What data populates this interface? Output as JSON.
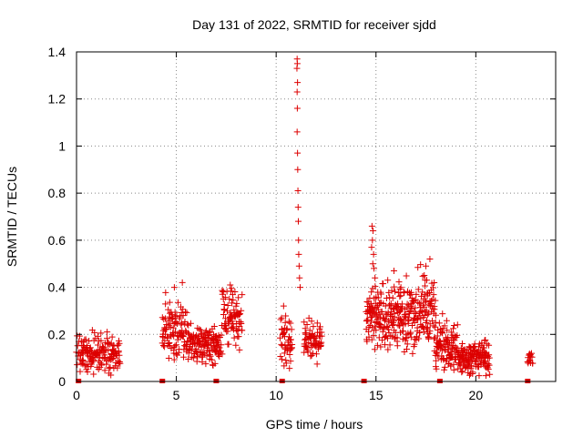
{
  "chart_data": {
    "type": "scatter",
    "title": "Day 131 of 2022, SRMTID for receiver sjdd",
    "xlabel": "GPS time / hours",
    "ylabel": "SRMTID / TECUs",
    "xlim": [
      0,
      24
    ],
    "ylim": [
      0,
      1.4
    ],
    "xticks": [
      {
        "value": 0,
        "label": "0"
      },
      {
        "value": 5,
        "label": "5"
      },
      {
        "value": 10,
        "label": "10"
      },
      {
        "value": 15,
        "label": "15"
      },
      {
        "value": 20,
        "label": "20"
      }
    ],
    "yticks": [
      {
        "value": 0,
        "label": "0"
      },
      {
        "value": 0.2,
        "label": "0.2"
      },
      {
        "value": 0.4,
        "label": "0.4"
      },
      {
        "value": 0.6,
        "label": "0.6"
      },
      {
        "value": 0.8,
        "label": "0.8"
      },
      {
        "value": 1.0,
        "label": "1"
      },
      {
        "value": 1.2,
        "label": "1.2"
      },
      {
        "value": 1.4,
        "label": "1.4"
      }
    ],
    "grid": true,
    "marker": "+",
    "color": "#dd0000",
    "segments": [
      {
        "x0": 0.0,
        "x1": 2.2,
        "base": 0.11,
        "spread": 0.06,
        "peak": 0.22,
        "step": 0.02
      },
      {
        "x0": 4.3,
        "x1": 5.6,
        "base": 0.21,
        "spread": 0.08,
        "peak": 0.42,
        "step": 0.018
      },
      {
        "x0": 5.6,
        "x1": 7.3,
        "base": 0.16,
        "spread": 0.06,
        "peak": 0.25,
        "step": 0.018
      },
      {
        "x0": 7.3,
        "x1": 8.3,
        "base": 0.27,
        "spread": 0.08,
        "peak": 0.41,
        "step": 0.018
      },
      {
        "x0": 10.2,
        "x1": 10.8,
        "base": 0.18,
        "spread": 0.08,
        "peak": 0.38,
        "step": 0.018
      },
      {
        "x0": 11.4,
        "x1": 12.3,
        "base": 0.17,
        "spread": 0.06,
        "peak": 0.3,
        "step": 0.018
      },
      {
        "x0": 14.5,
        "x1": 16.0,
        "base": 0.27,
        "spread": 0.1,
        "peak": 0.45,
        "step": 0.016
      },
      {
        "x0": 16.0,
        "x1": 18.0,
        "base": 0.28,
        "spread": 0.11,
        "peak": 0.5,
        "step": 0.016
      },
      {
        "x0": 18.0,
        "x1": 19.1,
        "base": 0.15,
        "spread": 0.07,
        "peak": 0.3,
        "step": 0.016
      },
      {
        "x0": 19.1,
        "x1": 20.7,
        "base": 0.1,
        "spread": 0.05,
        "peak": 0.18,
        "step": 0.016
      },
      {
        "x0": 22.6,
        "x1": 22.85,
        "base": 0.1,
        "spread": 0.02,
        "peak": 0.13,
        "step": 0.03
      }
    ],
    "spike_points": [
      {
        "x": 11.05,
        "y": 1.37
      },
      {
        "x": 11.06,
        "y": 1.35
      },
      {
        "x": 11.04,
        "y": 1.33
      },
      {
        "x": 11.07,
        "y": 1.27
      },
      {
        "x": 11.05,
        "y": 1.23
      },
      {
        "x": 11.06,
        "y": 1.16
      },
      {
        "x": 11.05,
        "y": 1.06
      },
      {
        "x": 11.07,
        "y": 0.97
      },
      {
        "x": 11.08,
        "y": 0.9
      },
      {
        "x": 11.09,
        "y": 0.81
      },
      {
        "x": 11.1,
        "y": 0.74
      },
      {
        "x": 11.11,
        "y": 0.68
      },
      {
        "x": 11.12,
        "y": 0.6
      },
      {
        "x": 11.13,
        "y": 0.54
      },
      {
        "x": 11.15,
        "y": 0.49
      },
      {
        "x": 11.17,
        "y": 0.44
      },
      {
        "x": 11.2,
        "y": 0.4
      },
      {
        "x": 14.8,
        "y": 0.66
      },
      {
        "x": 14.85,
        "y": 0.64
      },
      {
        "x": 14.82,
        "y": 0.6
      },
      {
        "x": 14.78,
        "y": 0.57
      },
      {
        "x": 14.88,
        "y": 0.54
      },
      {
        "x": 14.84,
        "y": 0.5
      },
      {
        "x": 14.9,
        "y": 0.48
      },
      {
        "x": 14.95,
        "y": 0.44
      },
      {
        "x": 17.7,
        "y": 0.52
      },
      {
        "x": 17.5,
        "y": 0.49
      },
      {
        "x": 15.9,
        "y": 0.47
      },
      {
        "x": 7.7,
        "y": 0.41
      },
      {
        "x": 5.3,
        "y": 0.42
      },
      {
        "x": 4.9,
        "y": 0.4
      }
    ],
    "gap_markers": [
      0.1,
      4.3,
      7.0,
      10.3,
      14.4,
      18.2,
      22.6
    ]
  }
}
